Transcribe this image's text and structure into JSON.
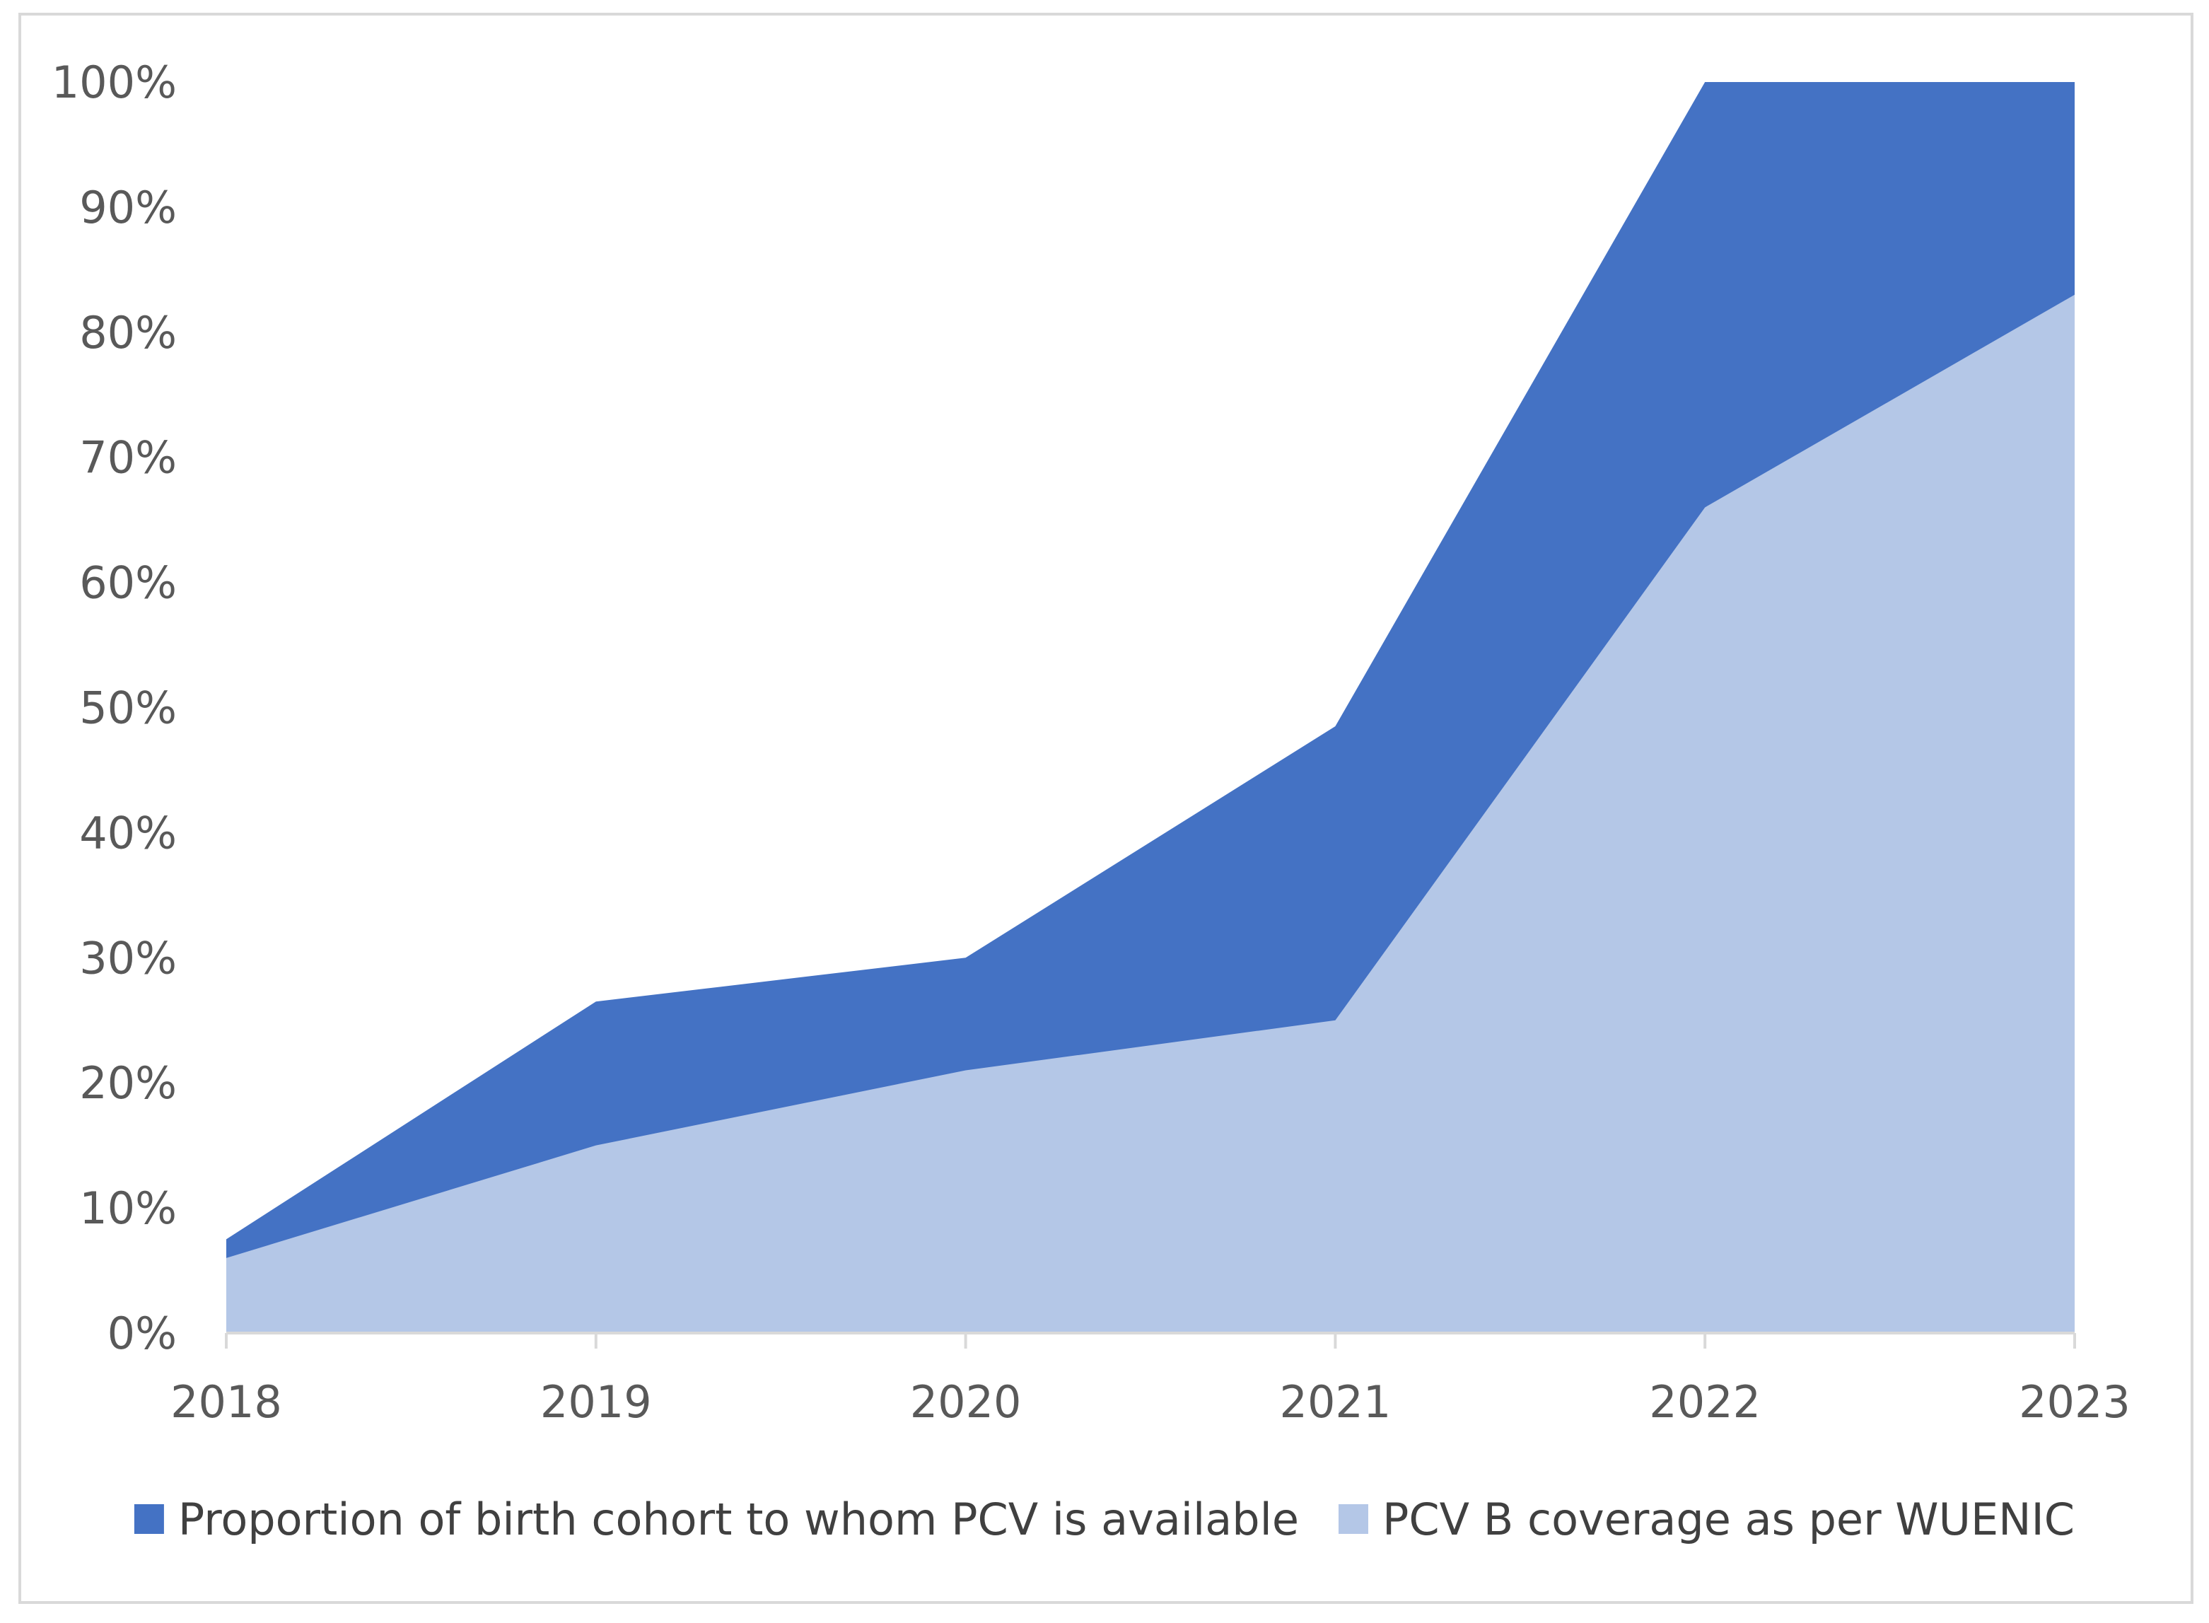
{
  "chart_data": {
    "type": "area",
    "stacked": false,
    "title": "",
    "xlabel": "",
    "ylabel": "",
    "categories": [
      "2018",
      "2019",
      "2020",
      "2021",
      "2022",
      "2023"
    ],
    "ylim": [
      0,
      100
    ],
    "yticks": [
      "0%",
      "10%",
      "20%",
      "30%",
      "40%",
      "50%",
      "60%",
      "70%",
      "80%",
      "90%",
      "100%"
    ],
    "series": [
      {
        "name": "Proportion of birth cohort to whom PCV is available",
        "values": [
          7.5,
          26.5,
          30,
          48.5,
          100,
          100
        ],
        "color": "#4472c4"
      },
      {
        "name": "PCV B coverage as per WUENIC",
        "values": [
          6,
          15,
          21,
          25,
          66,
          83
        ],
        "color": "#b4c7e7"
      }
    ],
    "legend_position": "bottom",
    "gridlines": false
  }
}
